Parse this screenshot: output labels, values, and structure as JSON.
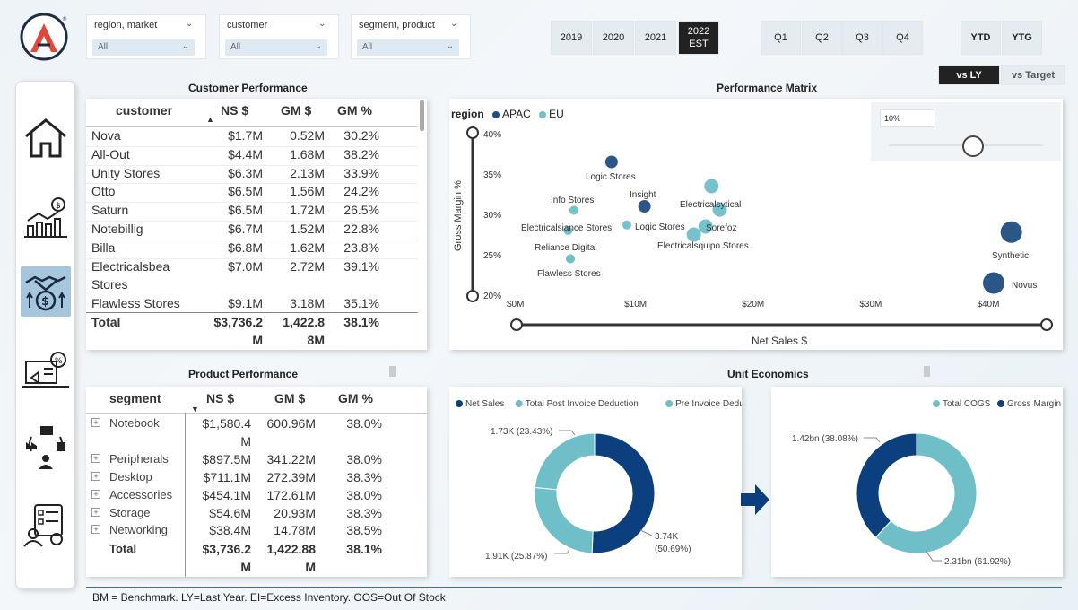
{
  "filters": [
    {
      "label": "region, market",
      "value": "All"
    },
    {
      "label": "customer",
      "value": "All"
    },
    {
      "label": "segment, product",
      "value": "All"
    }
  ],
  "years": [
    "2019",
    "2020",
    "2021",
    "2022\nEST"
  ],
  "quarters": [
    "Q1",
    "Q2",
    "Q3",
    "Q4"
  ],
  "period_mode": [
    "YTD",
    "YTG"
  ],
  "compare": [
    "vs LY",
    "vs Target"
  ],
  "nav": [
    "home-icon",
    "finance-icon",
    "sales-icon",
    "marketing-icon",
    "supply-chain-icon",
    "executive-icon"
  ],
  "customer_table": {
    "title": "Customer Performance",
    "headers": [
      "customer",
      "NS $",
      "GM $",
      "GM %"
    ],
    "rows": [
      [
        "Nova",
        "$1.7M",
        "0.52M",
        "30.2%"
      ],
      [
        "All-Out",
        "$4.4M",
        "1.68M",
        "38.2%"
      ],
      [
        "Unity Stores",
        "$6.3M",
        "2.13M",
        "33.9%"
      ],
      [
        "Otto",
        "$6.5M",
        "1.56M",
        "24.2%"
      ],
      [
        "Saturn",
        "$6.5M",
        "1.72M",
        "26.5%"
      ],
      [
        "Notebillig",
        "$6.7M",
        "1.52M",
        "22.8%"
      ],
      [
        "Billa",
        "$6.8M",
        "1.62M",
        "23.8%"
      ],
      [
        "Electricalsbea",
        "$7.0M",
        "2.72M",
        "39.1%"
      ],
      [
        "Stores",
        "",
        "",
        ""
      ],
      [
        "Flawless Stores",
        "$9.1M",
        "3.18M",
        "35.1%"
      ]
    ],
    "total": [
      "Total",
      "$3,736.2",
      "1,422.8",
      "38.1%"
    ],
    "total_wrap": [
      "",
      "M",
      "8M",
      ""
    ]
  },
  "product_table": {
    "title": "Product Performance",
    "headers": [
      "segment",
      "NS $",
      "GM $",
      "GM %"
    ],
    "rows": [
      [
        "Notebook",
        "$1,580.4",
        "600.96M",
        "38.0%"
      ],
      [
        "",
        "M",
        "",
        ""
      ],
      [
        "Peripherals",
        "$897.5M",
        "341.22M",
        "38.0%"
      ],
      [
        "Desktop",
        "$711.1M",
        "272.39M",
        "38.3%"
      ],
      [
        "Accessories",
        "$454.1M",
        "172.61M",
        "38.0%"
      ],
      [
        "Storage",
        "$54.6M",
        "20.93M",
        "38.3%"
      ],
      [
        "Networking",
        "$38.4M",
        "14.78M",
        "38.5%"
      ]
    ],
    "total": [
      "Total",
      "$3,736.2",
      "1,422.88",
      "38.1%"
    ],
    "total_wrap": [
      "",
      "M",
      "M",
      ""
    ]
  },
  "matrix": {
    "title": "Performance Matrix",
    "legend_title": "region",
    "slider_value": "10%"
  },
  "chart_data": [
    {
      "type": "scatter",
      "title": "Performance Matrix",
      "xlabel": "Net Sales $",
      "ylabel": "Gross Margin %",
      "xlim": [
        0,
        45
      ],
      "ylim": [
        20,
        40
      ],
      "xticks": [
        "$0M",
        "$10M",
        "$20M",
        "$30M",
        "$40M"
      ],
      "yticks": [
        "20%",
        "25%",
        "30%",
        "35%",
        "40%"
      ],
      "series": [
        {
          "name": "APAC",
          "color": "#1f4e82",
          "points": [
            {
              "label": "Logic Stores",
              "x": 8,
              "y": 36.5
            },
            {
              "label": "Insight",
              "x": 10.8,
              "y": 31
            },
            {
              "label": "Synthetic",
              "x": 42,
              "y": 27.8
            },
            {
              "label": "Novus",
              "x": 40.5,
              "y": 21.5
            }
          ]
        },
        {
          "name": "EU",
          "color": "#6fbfc9",
          "points": [
            {
              "label": "Info Stores",
              "x": 4.8,
              "y": 30.5
            },
            {
              "label": "Electricalsiance Stores",
              "x": 4.3,
              "y": 28
            },
            {
              "label": "Logic Stores",
              "x": 9.3,
              "y": 28.7
            },
            {
              "label": "Reliance Digital",
              "x": 4.5,
              "y": 24.5
            },
            {
              "label": "Flawless Stores",
              "x": 4.5,
              "y": 24.5
            },
            {
              "label": "Electricalsytical",
              "x": 16.5,
              "y": 33.5
            },
            {
              "label": "Electricalsytical",
              "x": 17.2,
              "y": 30.6
            },
            {
              "label": "Sorefoz",
              "x": 16,
              "y": 28.5
            },
            {
              "label": "Electricalsquipo Stores",
              "x": 15,
              "y": 27.5
            }
          ]
        }
      ]
    },
    {
      "type": "pie",
      "title": "Unit Economics",
      "legend": [
        "Net Sales",
        "Total Post Invoice Deduction",
        "Pre Invoice Deduction"
      ],
      "colors": [
        "#0b3f7e",
        "#6fbfc9",
        "#6fbfc9"
      ],
      "values": [
        50.69,
        25.87,
        23.43
      ],
      "labels": [
        "3.74K\n(50.69%)",
        "1.91K (25.87%)",
        "1.73K (23.43%)"
      ]
    },
    {
      "type": "pie",
      "legend": [
        "Total COGS",
        "Gross Margin"
      ],
      "colors": [
        "#6fbfc9",
        "#0b3f7e"
      ],
      "values": [
        61.92,
        38.08
      ],
      "labels": [
        "2.31bn (61.92%)",
        "1.42bn (38.08%)"
      ]
    }
  ],
  "unit_economics_title": "Unit Economics",
  "footer": "BM = Benchmark. LY=Last Year. EI=Excess Inventory. OOS=Out Of Stock"
}
